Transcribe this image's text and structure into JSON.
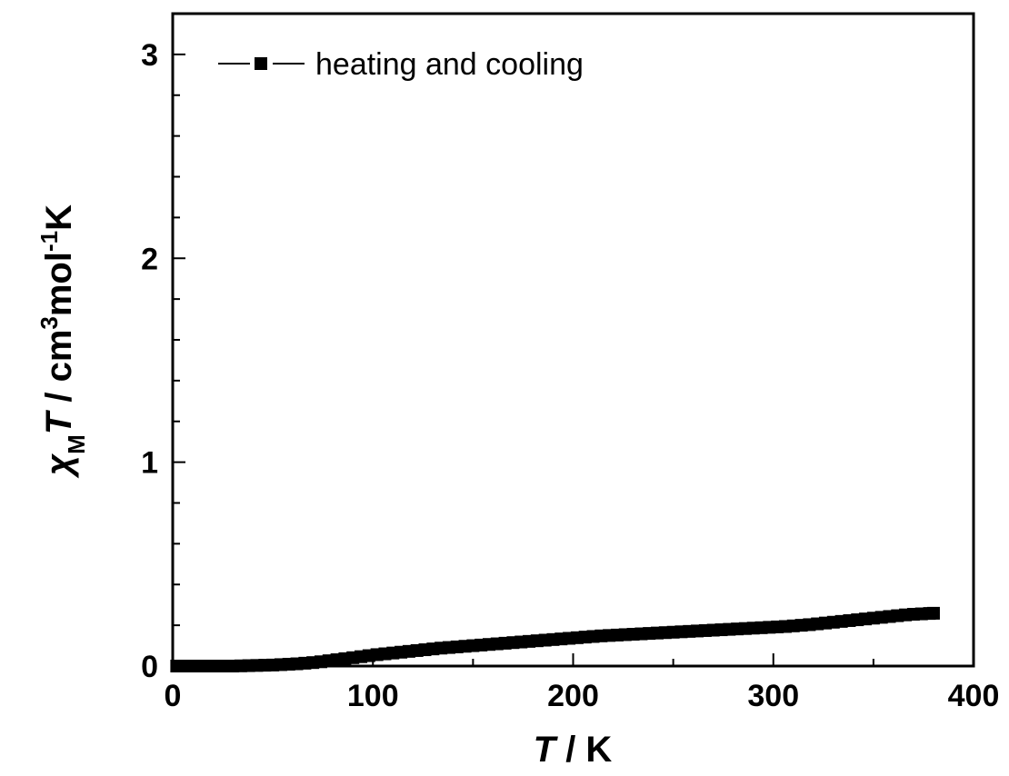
{
  "chart_data": {
    "type": "line",
    "xlabel": {
      "italic": "T",
      "rest": " / K"
    },
    "ylabel": {
      "chi": "χ",
      "chi_sub": "M",
      "T": "T",
      "mid": " / cm",
      "sup1": "3",
      "mid2": "mol",
      "sup2": "-1",
      "end": "K"
    },
    "xlim": [
      0,
      400
    ],
    "ylim": [
      0,
      3.2
    ],
    "xticks": [
      "0",
      "100",
      "200",
      "300",
      "400"
    ],
    "yticks": [
      "0",
      "1",
      "2",
      "3"
    ],
    "grid": false,
    "legend_position": "top-left",
    "series": [
      {
        "name": "heating and cooling",
        "marker": "square",
        "color": "#000000",
        "points": [
          [
            2,
            0.0
          ],
          [
            6,
            0.0
          ],
          [
            10,
            0.0
          ],
          [
            14,
            0.0
          ],
          [
            18,
            0.0
          ],
          [
            22,
            0.0
          ],
          [
            26,
            0.0
          ],
          [
            30,
            0.0
          ],
          [
            34,
            0.001
          ],
          [
            38,
            0.002
          ],
          [
            42,
            0.003
          ],
          [
            46,
            0.004
          ],
          [
            50,
            0.005
          ],
          [
            54,
            0.007
          ],
          [
            58,
            0.009
          ],
          [
            62,
            0.011
          ],
          [
            66,
            0.014
          ],
          [
            70,
            0.017
          ],
          [
            74,
            0.021
          ],
          [
            78,
            0.026
          ],
          [
            82,
            0.031
          ],
          [
            86,
            0.036
          ],
          [
            90,
            0.041
          ],
          [
            94,
            0.046
          ],
          [
            98,
            0.051
          ],
          [
            102,
            0.056
          ],
          [
            106,
            0.06
          ],
          [
            110,
            0.064
          ],
          [
            114,
            0.068
          ],
          [
            118,
            0.072
          ],
          [
            122,
            0.076
          ],
          [
            126,
            0.08
          ],
          [
            130,
            0.084
          ],
          [
            134,
            0.088
          ],
          [
            138,
            0.091
          ],
          [
            142,
            0.094
          ],
          [
            146,
            0.097
          ],
          [
            150,
            0.1
          ],
          [
            154,
            0.103
          ],
          [
            158,
            0.106
          ],
          [
            162,
            0.109
          ],
          [
            166,
            0.112
          ],
          [
            170,
            0.115
          ],
          [
            174,
            0.118
          ],
          [
            178,
            0.121
          ],
          [
            182,
            0.124
          ],
          [
            186,
            0.127
          ],
          [
            190,
            0.13
          ],
          [
            194,
            0.133
          ],
          [
            198,
            0.136
          ],
          [
            202,
            0.139
          ],
          [
            206,
            0.142
          ],
          [
            210,
            0.145
          ],
          [
            214,
            0.148
          ],
          [
            218,
            0.15
          ],
          [
            222,
            0.152
          ],
          [
            226,
            0.154
          ],
          [
            230,
            0.156
          ],
          [
            234,
            0.158
          ],
          [
            238,
            0.16
          ],
          [
            242,
            0.162
          ],
          [
            246,
            0.164
          ],
          [
            250,
            0.166
          ],
          [
            254,
            0.168
          ],
          [
            258,
            0.17
          ],
          [
            262,
            0.172
          ],
          [
            266,
            0.174
          ],
          [
            270,
            0.176
          ],
          [
            274,
            0.178
          ],
          [
            278,
            0.18
          ],
          [
            282,
            0.182
          ],
          [
            286,
            0.184
          ],
          [
            290,
            0.186
          ],
          [
            294,
            0.188
          ],
          [
            298,
            0.19
          ],
          [
            302,
            0.192
          ],
          [
            306,
            0.194
          ],
          [
            310,
            0.197
          ],
          [
            314,
            0.2
          ],
          [
            318,
            0.203
          ],
          [
            322,
            0.207
          ],
          [
            326,
            0.211
          ],
          [
            330,
            0.215
          ],
          [
            334,
            0.219
          ],
          [
            338,
            0.223
          ],
          [
            342,
            0.227
          ],
          [
            346,
            0.231
          ],
          [
            350,
            0.235
          ],
          [
            354,
            0.239
          ],
          [
            358,
            0.243
          ],
          [
            362,
            0.247
          ],
          [
            366,
            0.251
          ],
          [
            370,
            0.254
          ],
          [
            374,
            0.256
          ],
          [
            378,
            0.258
          ],
          [
            380,
            0.259
          ]
        ]
      }
    ]
  }
}
